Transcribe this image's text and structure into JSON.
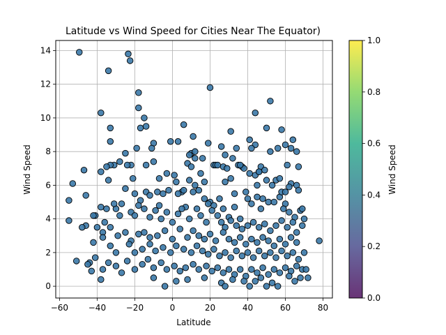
{
  "chart_data": {
    "type": "scatter",
    "title": "Latitude vs Wind Speed for Cities Near The Equator)",
    "xlabel": "Latitude",
    "ylabel": "Wind Speed",
    "xlim": [
      -62,
      85
    ],
    "ylim": [
      -0.7,
      14.6
    ],
    "xticks": [
      -60,
      -40,
      -20,
      0,
      20,
      40,
      60,
      80
    ],
    "yticks": [
      0,
      2,
      4,
      6,
      8,
      10,
      12,
      14
    ],
    "grid": true,
    "marker_color": "#3b79a8",
    "marker_edge": "#000000",
    "colorbar": {
      "label": "Wind Speed",
      "range": [
        0.0,
        1.0
      ],
      "ticks": [
        "0.0",
        "0.2",
        "0.4",
        "0.6",
        "0.8",
        "1.0"
      ],
      "colormap": [
        "#440154",
        "#414487",
        "#2a788e",
        "#22a884",
        "#7ad151",
        "#fde725"
      ]
    },
    "points": [
      [
        -49.5,
        13.9
      ],
      [
        -23.5,
        13.8
      ],
      [
        -22.5,
        13.4
      ],
      [
        -34,
        12.8
      ],
      [
        20,
        11.8
      ],
      [
        -18,
        11.5
      ],
      [
        52,
        11.0
      ],
      [
        -38,
        10.3
      ],
      [
        -18,
        10.6
      ],
      [
        -15,
        10.0
      ],
      [
        44,
        10.3
      ],
      [
        -33,
        9.4
      ],
      [
        -17,
        9.4
      ],
      [
        -14,
        9.5
      ],
      [
        6,
        9.6
      ],
      [
        31,
        9.2
      ],
      [
        50,
        9.4
      ],
      [
        58,
        9.3
      ],
      [
        -33,
        8.6
      ],
      [
        -10,
        8.5
      ],
      [
        -11,
        8.2
      ],
      [
        -1,
        8.6
      ],
      [
        10,
        7.9
      ],
      [
        19,
        8.5
      ],
      [
        26,
        8.3
      ],
      [
        34,
        8.2
      ],
      [
        41,
        8.7
      ],
      [
        44,
        8.4
      ],
      [
        42,
        8.2
      ],
      [
        52,
        8.0
      ],
      [
        56,
        8.2
      ],
      [
        60,
        8.4
      ],
      [
        63,
        8.2
      ],
      [
        64,
        8.7
      ],
      [
        66,
        8.0
      ],
      [
        11,
        8.9
      ],
      [
        -25,
        7.9
      ],
      [
        -22,
        7.2
      ],
      [
        -24,
        7.2
      ],
      [
        -28,
        7.4
      ],
      [
        -31,
        7.2
      ],
      [
        -33,
        7.2
      ],
      [
        -35,
        7.1
      ],
      [
        -38,
        6.8
      ],
      [
        -47,
        6.9
      ],
      [
        -53,
        6.1
      ],
      [
        9,
        7.8
      ],
      [
        12,
        7.6
      ],
      [
        8,
        7.3
      ],
      [
        10,
        7.1
      ],
      [
        16,
        7.6
      ],
      [
        22,
        7.2
      ],
      [
        23,
        7.2
      ],
      [
        28,
        7.8
      ],
      [
        27,
        7.1
      ],
      [
        29,
        7.0
      ],
      [
        32,
        7.6
      ],
      [
        35,
        7.2
      ],
      [
        37,
        7.1
      ],
      [
        38,
        7.0
      ],
      [
        44,
        6.6
      ],
      [
        46,
        6.8
      ],
      [
        47,
        7.1
      ],
      [
        49,
        6.9
      ],
      [
        50,
        6.3
      ],
      [
        55,
        6.3
      ],
      [
        61,
        7.2
      ],
      [
        63,
        6.1
      ],
      [
        66,
        6.0
      ],
      [
        67,
        7.1
      ],
      [
        -10,
        7.4
      ],
      [
        -3,
        6.7
      ],
      [
        1,
        6.6
      ],
      [
        2,
        6.2
      ],
      [
        5,
        5.6
      ],
      [
        12,
        6.0
      ],
      [
        15,
        6.7
      ],
      [
        28,
        6.2
      ],
      [
        33,
        5.5
      ],
      [
        -34,
        6.3
      ],
      [
        -25,
        5.8
      ],
      [
        -20,
        5.5
      ],
      [
        -17,
        5.1
      ],
      [
        -14,
        5.6
      ],
      [
        -12,
        5.4
      ],
      [
        -8,
        5.6
      ],
      [
        -5,
        5.5
      ],
      [
        -3,
        4.4
      ],
      [
        -2,
        5.7
      ],
      [
        3,
        5.5
      ],
      [
        6,
        5.7
      ],
      [
        11,
        5.6
      ],
      [
        14,
        5.7
      ],
      [
        17,
        5.2
      ],
      [
        20,
        5.0
      ],
      [
        22,
        4.8
      ],
      [
        25,
        5.2
      ],
      [
        27,
        4.6
      ],
      [
        30,
        4.1
      ],
      [
        36,
        4.0
      ],
      [
        40,
        5.2
      ],
      [
        42,
        4.9
      ],
      [
        45,
        5.3
      ],
      [
        48,
        5.2
      ],
      [
        51,
        5.0
      ],
      [
        54,
        5.0
      ],
      [
        57,
        5.3
      ],
      [
        60,
        4.9
      ],
      [
        62,
        4.4
      ],
      [
        65,
        4.1
      ],
      [
        68,
        4.5
      ],
      [
        70,
        4.0
      ],
      [
        -55,
        5.1
      ],
      [
        -55,
        3.9
      ],
      [
        -46,
        5.4
      ],
      [
        -41,
        4.2
      ],
      [
        -38,
        4.7
      ],
      [
        -35,
        4.6
      ],
      [
        -30,
        4.6
      ],
      [
        -28,
        4.2
      ],
      [
        -22,
        4.4
      ],
      [
        -20,
        4.2
      ],
      [
        -15,
        4.6
      ],
      [
        -12,
        4.1
      ],
      [
        -9,
        4.5
      ],
      [
        -6,
        4.0
      ],
      [
        0,
        3.8
      ],
      [
        3,
        4.3
      ],
      [
        7,
        4.7
      ],
      [
        9,
        4.0
      ],
      [
        13,
        4.6
      ],
      [
        15,
        4.2
      ],
      [
        18,
        3.8
      ],
      [
        21,
        4.5
      ],
      [
        24,
        4.2
      ],
      [
        26,
        3.8
      ],
      [
        28,
        3.5
      ],
      [
        31,
        3.9
      ],
      [
        34,
        3.6
      ],
      [
        37,
        3.4
      ],
      [
        40,
        3.6
      ],
      [
        43,
        3.8
      ],
      [
        46,
        3.5
      ],
      [
        49,
        3.7
      ],
      [
        52,
        3.3
      ],
      [
        55,
        3.6
      ],
      [
        58,
        3.9
      ],
      [
        61,
        3.5
      ],
      [
        64,
        3.8
      ],
      [
        66,
        3.2
      ],
      [
        69,
        3.6
      ],
      [
        -46,
        3.6
      ],
      [
        -40,
        3.5
      ],
      [
        -37,
        3.2
      ],
      [
        -33,
        3.5
      ],
      [
        -29,
        3.0
      ],
      [
        -25,
        3.2
      ],
      [
        -22,
        2.7
      ],
      [
        -18,
        3.1
      ],
      [
        -15,
        3.2
      ],
      [
        -12,
        2.9
      ],
      [
        -8,
        3.0
      ],
      [
        -4,
        3.3
      ],
      [
        0,
        2.8
      ],
      [
        4,
        3.4
      ],
      [
        8,
        2.9
      ],
      [
        11,
        3.3
      ],
      [
        14,
        3.0
      ],
      [
        17,
        2.8
      ],
      [
        20,
        3.1
      ],
      [
        23,
        2.7
      ],
      [
        27,
        3.2
      ],
      [
        30,
        2.8
      ],
      [
        33,
        2.6
      ],
      [
        36,
        2.9
      ],
      [
        39,
        2.5
      ],
      [
        42,
        2.8
      ],
      [
        45,
        2.6
      ],
      [
        48,
        2.9
      ],
      [
        51,
        2.7
      ],
      [
        54,
        2.4
      ],
      [
        57,
        2.8
      ],
      [
        60,
        2.5
      ],
      [
        63,
        2.9
      ],
      [
        66,
        2.6
      ],
      [
        78,
        2.7
      ],
      [
        -42,
        2.6
      ],
      [
        -37,
        2.9
      ],
      [
        -33,
        2.4
      ],
      [
        -30,
        2.0
      ],
      [
        -23,
        2.5
      ],
      [
        -20,
        2.0
      ],
      [
        -16,
        2.2
      ],
      [
        -12,
        2.5
      ],
      [
        -9,
        2.1
      ],
      [
        -5,
        2.3
      ],
      [
        -1,
        2.0
      ],
      [
        2,
        2.4
      ],
      [
        6,
        2.2
      ],
      [
        10,
        2.0
      ],
      [
        13,
        2.4
      ],
      [
        16,
        2.1
      ],
      [
        19,
        1.9
      ],
      [
        22,
        2.2
      ],
      [
        25,
        1.8
      ],
      [
        28,
        2.0
      ],
      [
        31,
        1.7
      ],
      [
        34,
        2.1
      ],
      [
        37,
        1.8
      ],
      [
        40,
        2.0
      ],
      [
        43,
        1.7
      ],
      [
        46,
        2.1
      ],
      [
        49,
        1.8
      ],
      [
        52,
        2.0
      ],
      [
        55,
        1.7
      ],
      [
        58,
        2.1
      ],
      [
        61,
        1.8
      ],
      [
        64,
        2.0
      ],
      [
        67,
        1.6
      ],
      [
        70,
        2.0
      ],
      [
        -44,
        1.4
      ],
      [
        -41,
        1.7
      ],
      [
        -37,
        1.0
      ],
      [
        -34,
        1.4
      ],
      [
        -30,
        1.2
      ],
      [
        -27,
        0.8
      ],
      [
        -24,
        1.5
      ],
      [
        -20,
        1.0
      ],
      [
        -16,
        1.3
      ],
      [
        -13,
        1.6
      ],
      [
        -10,
        1.1
      ],
      [
        -6,
        1.4
      ],
      [
        -3,
        1.0
      ],
      [
        1,
        1.2
      ],
      [
        4,
        0.9
      ],
      [
        7,
        1.1
      ],
      [
        11,
        1.3
      ],
      [
        14,
        1.0
      ],
      [
        18,
        1.2
      ],
      [
        21,
        0.9
      ],
      [
        24,
        1.1
      ],
      [
        27,
        0.8
      ],
      [
        30,
        1.0
      ],
      [
        33,
        0.7
      ],
      [
        36,
        1.0
      ],
      [
        39,
        0.6
      ],
      [
        42,
        1.0
      ],
      [
        45,
        0.8
      ],
      [
        48,
        1.1
      ],
      [
        51,
        0.7
      ],
      [
        54,
        1.0
      ],
      [
        57,
        0.8
      ],
      [
        60,
        1.1
      ],
      [
        63,
        0.9
      ],
      [
        66,
        1.2
      ],
      [
        69,
        1.0
      ],
      [
        71,
        1.0
      ],
      [
        -51,
        1.5
      ],
      [
        -45,
        1.3
      ],
      [
        -43,
        0.9
      ],
      [
        -38,
        0.4
      ],
      [
        -10,
        0.5
      ],
      [
        -4,
        0.0
      ],
      [
        2,
        0.3
      ],
      [
        8,
        0.4
      ],
      [
        17,
        0.5
      ],
      [
        26,
        0.2
      ],
      [
        28,
        0.0
      ],
      [
        32,
        0.4
      ],
      [
        38,
        0.3
      ],
      [
        41,
        0.0
      ],
      [
        44,
        0.3
      ],
      [
        47,
        0.5
      ],
      [
        50,
        0.0
      ],
      [
        53,
        0.2
      ],
      [
        56,
        0.0
      ],
      [
        62,
        0.6
      ],
      [
        65,
        0.3
      ],
      [
        68,
        0.5
      ],
      [
        72,
        0.5
      ],
      [
        -48,
        3.5
      ],
      [
        -42,
        4.2
      ],
      [
        -36,
        3.8
      ],
      [
        -31,
        4.9
      ],
      [
        -27,
        4.9
      ],
      [
        -18,
        4.8
      ],
      [
        -7,
        4.8
      ],
      [
        5,
        4.6
      ],
      [
        19,
        4.9
      ],
      [
        33,
        4.7
      ],
      [
        47,
        4.6
      ],
      [
        59,
        4.6
      ],
      [
        69,
        4.6
      ],
      [
        -19,
        8.2
      ],
      [
        -14,
        7.2
      ],
      [
        3,
        8.6
      ],
      [
        12,
        8.0
      ],
      [
        24,
        7.2
      ],
      [
        36,
        7.2
      ],
      [
        41,
        6.7
      ],
      [
        46,
        6.8
      ],
      [
        53,
        6.0
      ],
      [
        58,
        5.6
      ],
      [
        62,
        5.9
      ],
      [
        67,
        5.7
      ],
      [
        -21,
        6.4
      ],
      [
        -7,
        6.4
      ],
      [
        9,
        6.3
      ],
      [
        17,
        6.2
      ],
      [
        31,
        6.4
      ],
      [
        39,
        5.6
      ],
      [
        45,
        6.0
      ],
      [
        57,
        6.4
      ],
      [
        60,
        5.6
      ]
    ]
  }
}
